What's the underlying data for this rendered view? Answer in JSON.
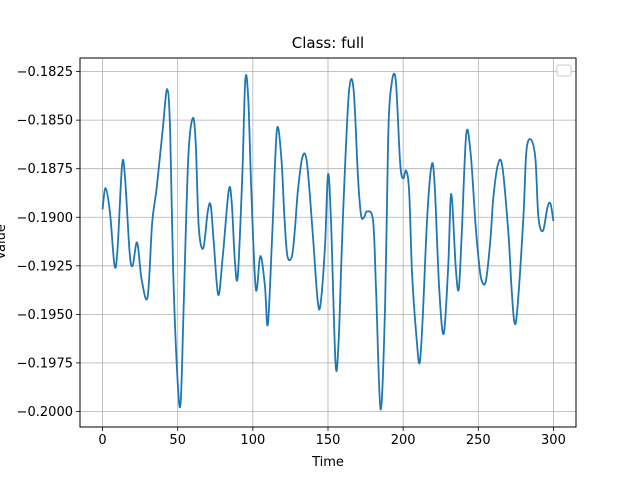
{
  "chart_data": {
    "type": "line",
    "title": "Class: full",
    "xlabel": "Time",
    "ylabel": "Value",
    "xlim": [
      -15,
      315
    ],
    "ylim": [
      -0.2008,
      -0.1818
    ],
    "xticks": [
      0,
      50,
      100,
      150,
      200,
      250,
      300
    ],
    "yticks": [
      -0.2,
      -0.1975,
      -0.195,
      -0.1925,
      -0.19,
      -0.1875,
      -0.185,
      -0.1825
    ],
    "xtick_labels": [
      "0",
      "50",
      "100",
      "150",
      "200",
      "250",
      "300"
    ],
    "ytick_labels": [
      "−0.2000",
      "−0.1975",
      "−0.1950",
      "−0.1925",
      "−0.1900",
      "−0.1875",
      "−0.1850",
      "−0.1825"
    ],
    "grid": true,
    "legend": {
      "placement": "top-right",
      "entries": []
    },
    "colors": {
      "line": "#1f77b4",
      "grid": "#b0b0b0"
    },
    "series": [
      {
        "x": [
          0,
          2,
          5,
          8,
          10,
          13,
          15,
          18,
          20,
          23,
          26,
          30,
          33,
          36,
          40,
          43,
          45,
          47,
          50,
          52,
          54,
          57,
          60,
          62,
          64,
          67,
          70,
          72,
          74,
          77,
          80,
          84,
          86,
          88,
          90,
          93,
          95,
          97,
          99,
          102,
          105,
          108,
          110,
          113,
          116,
          119,
          121,
          123,
          126,
          128,
          130,
          133,
          136,
          140,
          143,
          145,
          148,
          150,
          152,
          155,
          157,
          159,
          161,
          164,
          167,
          170,
          172,
          174,
          176,
          180,
          182,
          185,
          188,
          190,
          192,
          195,
          198,
          200,
          202,
          204,
          206,
          209,
          211,
          213,
          216,
          219,
          221,
          224,
          227,
          230,
          232,
          235,
          237,
          239,
          242,
          245,
          248,
          250,
          252,
          255,
          258,
          260,
          263,
          266,
          270,
          272,
          274,
          276,
          280,
          282,
          285,
          288,
          290,
          293,
          296,
          298,
          300
        ],
        "y": [
          -0.1896,
          -0.1885,
          -0.1898,
          -0.1925,
          -0.1916,
          -0.1873,
          -0.188,
          -0.1918,
          -0.1925,
          -0.1913,
          -0.1932,
          -0.1941,
          -0.1903,
          -0.1885,
          -0.1855,
          -0.1834,
          -0.1856,
          -0.1928,
          -0.1985,
          -0.1995,
          -0.1945,
          -0.187,
          -0.1849,
          -0.1862,
          -0.1905,
          -0.1916,
          -0.1897,
          -0.1894,
          -0.1913,
          -0.194,
          -0.192,
          -0.1886,
          -0.1893,
          -0.1922,
          -0.193,
          -0.1878,
          -0.1829,
          -0.184,
          -0.1887,
          -0.1937,
          -0.192,
          -0.1935,
          -0.1955,
          -0.1907,
          -0.1855,
          -0.187,
          -0.19,
          -0.192,
          -0.192,
          -0.1906,
          -0.1886,
          -0.1869,
          -0.1872,
          -0.191,
          -0.1942,
          -0.1945,
          -0.1915,
          -0.1878,
          -0.1902,
          -0.1975,
          -0.1965,
          -0.192,
          -0.188,
          -0.1835,
          -0.1834,
          -0.188,
          -0.1899,
          -0.19,
          -0.1897,
          -0.1902,
          -0.1938,
          -0.1999,
          -0.1945,
          -0.186,
          -0.1833,
          -0.1829,
          -0.1872,
          -0.188,
          -0.1876,
          -0.1887,
          -0.193,
          -0.1963,
          -0.1975,
          -0.1952,
          -0.19,
          -0.1873,
          -0.1884,
          -0.1937,
          -0.196,
          -0.1925,
          -0.1888,
          -0.1926,
          -0.1937,
          -0.1908,
          -0.1857,
          -0.1868,
          -0.1902,
          -0.192,
          -0.1932,
          -0.1933,
          -0.1912,
          -0.189,
          -0.1873,
          -0.1874,
          -0.1908,
          -0.1935,
          -0.1954,
          -0.1947,
          -0.19,
          -0.1866,
          -0.186,
          -0.187,
          -0.19,
          -0.1907,
          -0.1895,
          -0.1893,
          -0.1902
        ]
      }
    ]
  }
}
